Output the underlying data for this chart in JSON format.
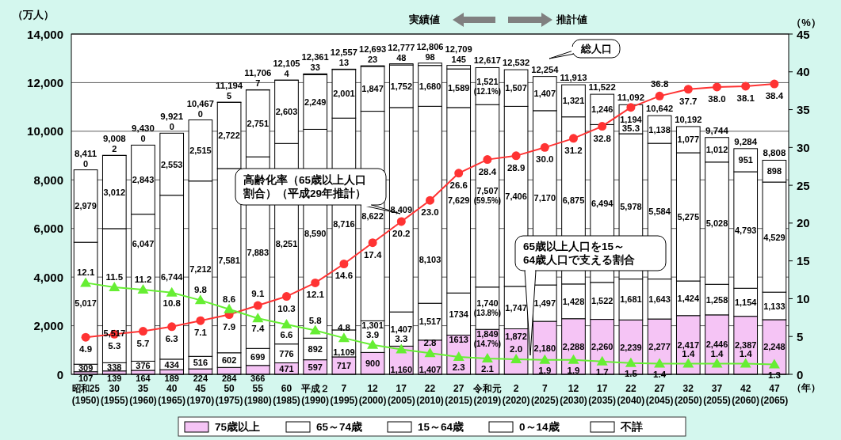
{
  "chart_data": {
    "type": "bar",
    "stacked": true,
    "categories": [
      "昭和25(1950)",
      "30(1955)",
      "35(1960)",
      "40(1965)",
      "45(1970)",
      "50(1975)",
      "55(1980)",
      "60(1985)",
      "平成２(1990)",
      "7(1995)",
      "12(2000)",
      "17(2005)",
      "22(2010)",
      "27(2015)",
      "令和元(2019)",
      "2(2020)",
      "7(2025)",
      "12(2030)",
      "17(2035)",
      "22(2040)",
      "27(2045)",
      "32(2050)",
      "37(2055)",
      "42(2060)",
      "47(2065)"
    ],
    "series": [
      {
        "name": "75歳以上",
        "color": "#f5c4f5",
        "values": [
          107,
          139,
          164,
          189,
          224,
          284,
          366,
          471,
          597,
          717,
          900,
          1160,
          1407,
          1613,
          1849,
          1872,
          2180,
          2288,
          2260,
          2239,
          2277,
          2417,
          2446,
          2387,
          2248
        ],
        "value_labels": [
          "107",
          "139",
          "164",
          "189",
          "224",
          "284",
          "366",
          "471",
          "597",
          "717",
          "900",
          "1,160",
          "1,407",
          "1613",
          "1,849(14.7%)",
          "1,872",
          "2,180",
          "2,288",
          "2,260",
          "2,239",
          "2,277",
          "2,417",
          "2,446",
          "2,387",
          "2,248"
        ]
      },
      {
        "name": "65～74歳",
        "color": "#ffffff",
        "values": [
          309,
          338,
          376,
          434,
          516,
          602,
          699,
          776,
          892,
          1109,
          1301,
          1407,
          1517,
          1734,
          1740,
          1747,
          1497,
          1428,
          1522,
          1681,
          1643,
          1424,
          1258,
          1154,
          1133
        ],
        "value_labels": [
          "309",
          "338",
          "376",
          "434",
          "516",
          "602",
          "699",
          "776",
          "892",
          "1,109",
          "1,301",
          "1,407",
          "1,517",
          "1734",
          "1,740(13.8%)",
          "1,747",
          "1,497",
          "1,428",
          "1,522",
          "1,681",
          "1,643",
          "1,424",
          "1,258",
          "1,154",
          "1,133"
        ]
      },
      {
        "name": "15～64歳",
        "color": "#ffffff",
        "values": [
          5017,
          5517,
          6047,
          6744,
          7212,
          7581,
          7883,
          8251,
          8590,
          8716,
          8622,
          8409,
          8103,
          7629,
          7507,
          7406,
          7170,
          6875,
          6494,
          5978,
          5584,
          5275,
          5028,
          4793,
          4529
        ],
        "value_labels": [
          "5,017",
          "5,517",
          "6,047",
          "6,744",
          "7,212",
          "7,581",
          "7,883",
          "8,251",
          "8,590",
          "8,716",
          "8,622",
          "8,409",
          "8,103",
          "7,629",
          "7,507(59.5%)",
          "7,406",
          "7,170",
          "6,875",
          "6,494",
          "5,978",
          "5,584",
          "5,275",
          "5,028",
          "4,793",
          "4,529"
        ]
      },
      {
        "name": "0～14歳",
        "color": "#ffffff",
        "values": [
          2979,
          3012,
          2843,
          2553,
          2515,
          2722,
          2751,
          2603,
          2249,
          2001,
          1847,
          1752,
          1680,
          1589,
          1521,
          1507,
          1407,
          1321,
          1246,
          1194,
          1138,
          1077,
          1012,
          951,
          898
        ],
        "value_labels": [
          "2,979",
          "3,012",
          "2,843",
          "2,553",
          "2,515",
          "2,722",
          "2,751",
          "2,603",
          "2,249",
          "2,001",
          "1,847",
          "1,752",
          "1,680",
          "1,589",
          "1,521(12.1%)",
          "1,507",
          "1,407",
          "1,321",
          "1,246",
          "1,194",
          "1,138",
          "1,077",
          "1,012",
          "951",
          "898"
        ]
      },
      {
        "name": "不詳",
        "color": "#ffffff",
        "values": [
          0,
          2,
          0,
          0,
          0,
          5,
          7,
          4,
          33,
          13,
          23,
          48,
          98,
          145,
          null,
          null,
          null,
          null,
          null,
          null,
          null,
          null,
          null,
          null,
          null
        ],
        "value_labels": [
          "0",
          "2",
          "0",
          "0",
          "0",
          "5",
          "7",
          "4",
          "33",
          "13",
          "23",
          "48",
          "98",
          "145",
          null,
          null,
          null,
          null,
          null,
          null,
          null,
          null,
          null,
          null,
          null
        ]
      },
      {
        "name": "高齢化率（65歳以上人口割合）（平成29年推計）",
        "type": "line",
        "axis": "y2",
        "color": "#ff3333",
        "marker": "circle",
        "values": [
          4.9,
          5.3,
          5.7,
          6.3,
          7.1,
          7.9,
          9.1,
          10.3,
          12.1,
          14.6,
          17.4,
          20.2,
          23.0,
          26.6,
          28.4,
          28.9,
          30.0,
          31.2,
          32.8,
          35.3,
          36.8,
          37.7,
          38.0,
          38.1,
          38.4
        ],
        "value_labels": [
          "4.9",
          "5.3",
          "5.7",
          "6.3",
          "7.1",
          "7.9",
          "9.1",
          "10.3",
          "12.1",
          "14.6",
          "17.4",
          "20.2",
          "23.0",
          "26.6",
          "28.4",
          "28.9",
          "30.0",
          "31.2",
          "32.8",
          "35.3",
          "36.8",
          "37.7",
          "38.0",
          "38.1",
          "38.4"
        ]
      },
      {
        "name": "65歳以上人口を15～64歳人口で支える割合",
        "type": "line",
        "axis": "y2",
        "color": "#66ee33",
        "marker": "triangle",
        "values": [
          12.1,
          11.5,
          11.2,
          10.8,
          9.8,
          8.6,
          7.4,
          6.6,
          5.8,
          4.8,
          3.9,
          3.3,
          2.8,
          2.3,
          2.1,
          2.0,
          1.9,
          1.9,
          1.7,
          1.5,
          1.4,
          1.4,
          1.4,
          1.4,
          1.3
        ],
        "value_labels": [
          "12.1",
          "11.5",
          "11.2",
          "10.8",
          "9.8",
          "8.6",
          "7.4",
          "6.6",
          "5.8",
          "4.8",
          "3.9",
          "3.3",
          "2.8",
          "2.3",
          "2.1",
          "2.0",
          "1.9",
          "1.9",
          "1.7",
          "1.5",
          "1.4",
          "1.4",
          "1.4",
          "1.4",
          "1.3"
        ]
      }
    ],
    "totals": [
      "8,411",
      "9,008",
      "9,430",
      "9,921",
      "10,467",
      "11,194",
      "11,706",
      "12,105",
      "12,361",
      "12,557",
      "12,693",
      "12,777",
      "12,806",
      "12,709",
      "12,617",
      "12,532",
      "12,254",
      "11,913",
      "11,522",
      "11,092",
      "10,642",
      "10,192",
      "9,744",
      "9,284",
      "8,808"
    ],
    "ylabel": "（万人）",
    "y2label": "（%）",
    "xlabel": "（年）",
    "ylim": [
      0,
      14000
    ],
    "yticks": [
      {
        "value": 0,
        "label": "0"
      },
      {
        "value": 2000,
        "label": "2,000"
      },
      {
        "value": 4000,
        "label": "4,000"
      },
      {
        "value": 6000,
        "label": "6,000"
      },
      {
        "value": 8000,
        "label": "8,000"
      },
      {
        "value": 10000,
        "label": "10,000"
      },
      {
        "value": 12000,
        "label": "12,000"
      },
      {
        "value": 14000,
        "label": "14,000"
      }
    ],
    "y2lim": [
      0,
      45
    ],
    "y2ticks": [
      0,
      5,
      10,
      15,
      20,
      25,
      30,
      35,
      40,
      45
    ],
    "grid": "y",
    "legend": "bottom",
    "annotations": [
      "実績値",
      "推計値",
      "総人口"
    ]
  }
}
